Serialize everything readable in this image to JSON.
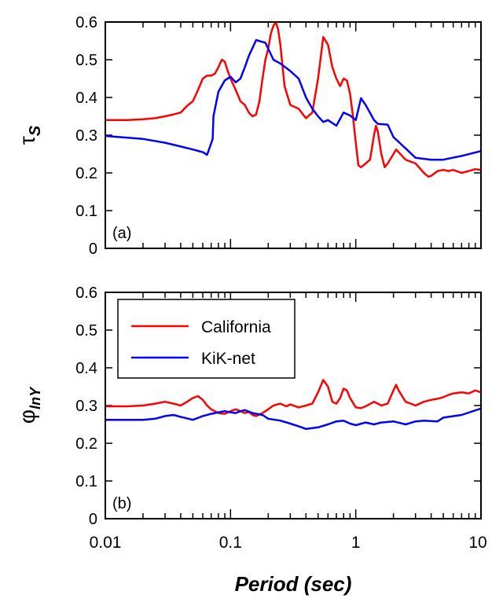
{
  "chart_data": [
    {
      "type": "line",
      "panel_label": "(a)",
      "ylabel": "τ",
      "ylabel_sub": "S",
      "xscale": "log",
      "xlim": [
        0.01,
        10
      ],
      "ylim": [
        0,
        0.6
      ],
      "yticks": [
        "0",
        "0.1",
        "0.2",
        "0.3",
        "0.4",
        "0.5",
        "0.6"
      ],
      "grid": false,
      "series": [
        {
          "name": "California",
          "color": "#ff0000",
          "points": [
            [
              0.01,
              0.34
            ],
            [
              0.015,
              0.34
            ],
            [
              0.02,
              0.342
            ],
            [
              0.025,
              0.345
            ],
            [
              0.03,
              0.35
            ],
            [
              0.035,
              0.355
            ],
            [
              0.04,
              0.36
            ],
            [
              0.045,
              0.378
            ],
            [
              0.05,
              0.39
            ],
            [
              0.055,
              0.42
            ],
            [
              0.06,
              0.45
            ],
            [
              0.065,
              0.458
            ],
            [
              0.07,
              0.458
            ],
            [
              0.075,
              0.463
            ],
            [
              0.08,
              0.48
            ],
            [
              0.085,
              0.5
            ],
            [
              0.09,
              0.495
            ],
            [
              0.095,
              0.47
            ],
            [
              0.1,
              0.45
            ],
            [
              0.11,
              0.42
            ],
            [
              0.12,
              0.39
            ],
            [
              0.13,
              0.38
            ],
            [
              0.14,
              0.36
            ],
            [
              0.15,
              0.35
            ],
            [
              0.16,
              0.355
            ],
            [
              0.17,
              0.39
            ],
            [
              0.18,
              0.45
            ],
            [
              0.19,
              0.5
            ],
            [
              0.2,
              0.53
            ],
            [
              0.21,
              0.57
            ],
            [
              0.22,
              0.59
            ],
            [
              0.23,
              0.6
            ],
            [
              0.24,
              0.58
            ],
            [
              0.25,
              0.54
            ],
            [
              0.27,
              0.43
            ],
            [
              0.3,
              0.38
            ],
            [
              0.35,
              0.37
            ],
            [
              0.4,
              0.345
            ],
            [
              0.45,
              0.36
            ],
            [
              0.5,
              0.45
            ],
            [
              0.55,
              0.56
            ],
            [
              0.6,
              0.54
            ],
            [
              0.65,
              0.48
            ],
            [
              0.7,
              0.45
            ],
            [
              0.75,
              0.43
            ],
            [
              0.8,
              0.45
            ],
            [
              0.85,
              0.445
            ],
            [
              0.9,
              0.41
            ],
            [
              0.95,
              0.35
            ],
            [
              1.0,
              0.28
            ],
            [
              1.05,
              0.22
            ],
            [
              1.1,
              0.215
            ],
            [
              1.2,
              0.225
            ],
            [
              1.3,
              0.235
            ],
            [
              1.4,
              0.3
            ],
            [
              1.45,
              0.325
            ],
            [
              1.5,
              0.31
            ],
            [
              1.6,
              0.25
            ],
            [
              1.7,
              0.215
            ],
            [
              1.8,
              0.225
            ],
            [
              2.0,
              0.25
            ],
            [
              2.1,
              0.262
            ],
            [
              2.2,
              0.255
            ],
            [
              2.5,
              0.235
            ],
            [
              3.0,
              0.225
            ],
            [
              3.5,
              0.2
            ],
            [
              3.8,
              0.19
            ],
            [
              4.0,
              0.192
            ],
            [
              4.5,
              0.205
            ],
            [
              5.0,
              0.208
            ],
            [
              5.5,
              0.205
            ],
            [
              6.0,
              0.208
            ],
            [
              7.0,
              0.2
            ],
            [
              8.0,
              0.205
            ],
            [
              9.0,
              0.21
            ],
            [
              10.0,
              0.208
            ]
          ]
        },
        {
          "name": "KiK-net",
          "color": "#0000ff",
          "points": [
            [
              0.01,
              0.298
            ],
            [
              0.02,
              0.29
            ],
            [
              0.03,
              0.28
            ],
            [
              0.04,
              0.27
            ],
            [
              0.05,
              0.262
            ],
            [
              0.06,
              0.255
            ],
            [
              0.065,
              0.248
            ],
            [
              0.072,
              0.29
            ],
            [
              0.073,
              0.35
            ],
            [
              0.08,
              0.415
            ],
            [
              0.09,
              0.445
            ],
            [
              0.1,
              0.455
            ],
            [
              0.11,
              0.44
            ],
            [
              0.12,
              0.45
            ],
            [
              0.13,
              0.48
            ],
            [
              0.14,
              0.51
            ],
            [
              0.16,
              0.552
            ],
            [
              0.19,
              0.545
            ],
            [
              0.22,
              0.5
            ],
            [
              0.25,
              0.49
            ],
            [
              0.3,
              0.47
            ],
            [
              0.35,
              0.45
            ],
            [
              0.4,
              0.4
            ],
            [
              0.45,
              0.37
            ],
            [
              0.5,
              0.35
            ],
            [
              0.55,
              0.335
            ],
            [
              0.6,
              0.34
            ],
            [
              0.7,
              0.325
            ],
            [
              0.8,
              0.36
            ],
            [
              0.9,
              0.352
            ],
            [
              1.0,
              0.34
            ],
            [
              1.1,
              0.398
            ],
            [
              1.2,
              0.38
            ],
            [
              1.4,
              0.34
            ],
            [
              1.5,
              0.33
            ],
            [
              1.8,
              0.328
            ],
            [
              2.0,
              0.295
            ],
            [
              2.5,
              0.265
            ],
            [
              3.0,
              0.24
            ],
            [
              4.0,
              0.235
            ],
            [
              5.0,
              0.235
            ],
            [
              7.0,
              0.245
            ],
            [
              10.0,
              0.258
            ]
          ]
        }
      ]
    },
    {
      "type": "line",
      "panel_label": "(b)",
      "ylabel": "φ",
      "ylabel_sub": "lnY",
      "xscale": "log",
      "xlim": [
        0.01,
        10
      ],
      "ylim": [
        0,
        0.6
      ],
      "yticks": [
        "0",
        "0.1",
        "0.2",
        "0.3",
        "0.4",
        "0.5",
        "0.6"
      ],
      "xticks": [
        "0.01",
        "0.1",
        "1",
        "10"
      ],
      "xlabel": "Period (sec)",
      "legend": {
        "placement": "upper-left",
        "entries": [
          "California",
          "KiK-net"
        ]
      },
      "grid": false,
      "series": [
        {
          "name": "California",
          "color": "#ff0000",
          "points": [
            [
              0.01,
              0.298
            ],
            [
              0.015,
              0.298
            ],
            [
              0.02,
              0.3
            ],
            [
              0.025,
              0.305
            ],
            [
              0.03,
              0.31
            ],
            [
              0.035,
              0.305
            ],
            [
              0.04,
              0.3
            ],
            [
              0.045,
              0.31
            ],
            [
              0.05,
              0.32
            ],
            [
              0.055,
              0.325
            ],
            [
              0.06,
              0.315
            ],
            [
              0.065,
              0.3
            ],
            [
              0.07,
              0.29
            ],
            [
              0.08,
              0.28
            ],
            [
              0.09,
              0.278
            ],
            [
              0.1,
              0.285
            ],
            [
              0.11,
              0.29
            ],
            [
              0.12,
              0.285
            ],
            [
              0.13,
              0.28
            ],
            [
              0.14,
              0.283
            ],
            [
              0.15,
              0.275
            ],
            [
              0.16,
              0.272
            ],
            [
              0.18,
              0.28
            ],
            [
              0.2,
              0.29
            ],
            [
              0.22,
              0.3
            ],
            [
              0.25,
              0.305
            ],
            [
              0.28,
              0.298
            ],
            [
              0.3,
              0.303
            ],
            [
              0.35,
              0.295
            ],
            [
              0.4,
              0.3
            ],
            [
              0.45,
              0.305
            ],
            [
              0.5,
              0.335
            ],
            [
              0.55,
              0.368
            ],
            [
              0.6,
              0.35
            ],
            [
              0.65,
              0.31
            ],
            [
              0.7,
              0.305
            ],
            [
              0.75,
              0.32
            ],
            [
              0.8,
              0.345
            ],
            [
              0.85,
              0.34
            ],
            [
              0.9,
              0.32
            ],
            [
              1.0,
              0.295
            ],
            [
              1.1,
              0.293
            ],
            [
              1.2,
              0.298
            ],
            [
              1.4,
              0.31
            ],
            [
              1.6,
              0.3
            ],
            [
              1.8,
              0.305
            ],
            [
              2.0,
              0.34
            ],
            [
              2.1,
              0.355
            ],
            [
              2.2,
              0.34
            ],
            [
              2.5,
              0.31
            ],
            [
              3.0,
              0.3
            ],
            [
              3.5,
              0.31
            ],
            [
              4.0,
              0.315
            ],
            [
              4.5,
              0.318
            ],
            [
              5.0,
              0.322
            ],
            [
              5.5,
              0.328
            ],
            [
              6.0,
              0.332
            ],
            [
              7.0,
              0.335
            ],
            [
              8.0,
              0.332
            ],
            [
              9.0,
              0.34
            ],
            [
              10.0,
              0.335
            ]
          ]
        },
        {
          "name": "KiK-net",
          "color": "#0000ff",
          "points": [
            [
              0.01,
              0.262
            ],
            [
              0.015,
              0.262
            ],
            [
              0.02,
              0.262
            ],
            [
              0.025,
              0.265
            ],
            [
              0.03,
              0.272
            ],
            [
              0.035,
              0.275
            ],
            [
              0.04,
              0.27
            ],
            [
              0.05,
              0.262
            ],
            [
              0.06,
              0.272
            ],
            [
              0.07,
              0.278
            ],
            [
              0.08,
              0.282
            ],
            [
              0.09,
              0.285
            ],
            [
              0.1,
              0.282
            ],
            [
              0.11,
              0.28
            ],
            [
              0.12,
              0.285
            ],
            [
              0.13,
              0.288
            ],
            [
              0.15,
              0.28
            ],
            [
              0.18,
              0.275
            ],
            [
              0.2,
              0.265
            ],
            [
              0.25,
              0.26
            ],
            [
              0.3,
              0.252
            ],
            [
              0.35,
              0.245
            ],
            [
              0.4,
              0.238
            ],
            [
              0.5,
              0.242
            ],
            [
              0.6,
              0.25
            ],
            [
              0.7,
              0.258
            ],
            [
              0.8,
              0.26
            ],
            [
              0.9,
              0.252
            ],
            [
              1.0,
              0.248
            ],
            [
              1.2,
              0.255
            ],
            [
              1.4,
              0.25
            ],
            [
              1.6,
              0.255
            ],
            [
              2.0,
              0.258
            ],
            [
              2.5,
              0.25
            ],
            [
              3.0,
              0.258
            ],
            [
              3.5,
              0.26
            ],
            [
              4.5,
              0.258
            ],
            [
              5.0,
              0.268
            ],
            [
              7.0,
              0.275
            ],
            [
              10.0,
              0.292
            ]
          ]
        }
      ]
    }
  ]
}
